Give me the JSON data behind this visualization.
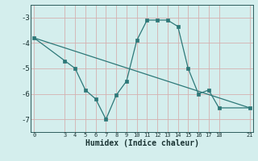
{
  "xlabel": "Humidex (Indice chaleur)",
  "bg_color": "#d4eeed",
  "grid_color": "#d4b0b0",
  "line_color": "#2d7878",
  "line1_x": [
    0,
    3,
    4,
    5,
    6,
    7,
    8,
    9,
    10,
    11,
    12,
    13,
    14,
    15,
    16,
    17,
    18,
    21
  ],
  "line1_y": [
    -3.8,
    -4.7,
    -5.0,
    -5.85,
    -6.2,
    -7.0,
    -6.05,
    -5.5,
    -3.9,
    -3.1,
    -3.1,
    -3.1,
    -3.35,
    -5.0,
    -6.0,
    -5.85,
    -6.55,
    -6.55
  ],
  "line2_x": [
    0,
    21
  ],
  "line2_y": [
    -3.8,
    -6.55
  ],
  "xlim": [
    -0.3,
    21.3
  ],
  "ylim": [
    -7.5,
    -2.5
  ],
  "yticks": [
    -7,
    -6,
    -5,
    -4,
    -3
  ],
  "xticks": [
    0,
    3,
    4,
    5,
    6,
    7,
    8,
    9,
    10,
    11,
    12,
    13,
    14,
    15,
    16,
    17,
    18,
    21
  ],
  "tick_color": "#2d5c5c",
  "label_color": "#1a3333"
}
